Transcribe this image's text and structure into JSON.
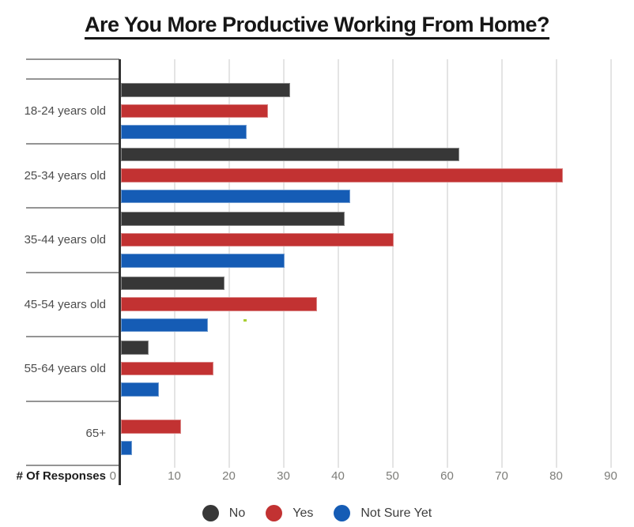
{
  "page": {
    "background": "#ffffff"
  },
  "chart_data": {
    "type": "bar",
    "orientation": "horizontal",
    "title": "Are You More Productive Working From Home?",
    "xlabel": "# Of Responses",
    "categories": [
      "18-24 years old",
      "25-34 years old",
      "35-44 years old",
      "45-54 years old",
      "55-64 years old",
      "65+"
    ],
    "series": [
      {
        "name": "No",
        "color": "#373737",
        "values": [
          31,
          62,
          41,
          19,
          5,
          0
        ]
      },
      {
        "name": "Yes",
        "color": "#c23232",
        "values": [
          27,
          81,
          50,
          36,
          17,
          11
        ]
      },
      {
        "name": "Not Sure Yet",
        "color": "#155cb5",
        "values": [
          23,
          42,
          30,
          16,
          7,
          2
        ]
      }
    ],
    "xlim": [
      0,
      90
    ],
    "xticks": [
      0,
      10,
      20,
      30,
      40,
      50,
      60,
      70,
      80,
      90
    ],
    "grid": true,
    "legend_position": "bottom"
  }
}
